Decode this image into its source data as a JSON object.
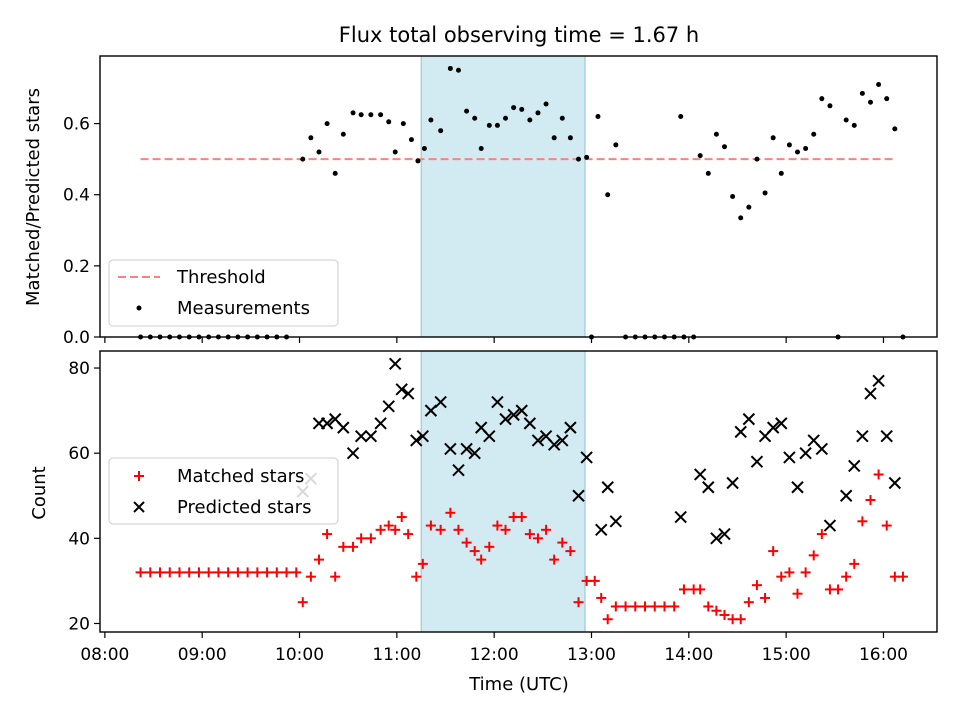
{
  "chart_data": [
    {
      "type": "scatter",
      "title": "Flux total observing time = 1.67 h",
      "ylabel": "Matched/Predicted stars",
      "xlabel": "",
      "xlim": [
        "07:57",
        "16:33"
      ],
      "ylim": [
        0.0,
        0.79
      ],
      "yticks": [
        "0.0",
        "0.2",
        "0.4",
        "0.6"
      ],
      "grid": false,
      "legend_position": "lower-left",
      "shaded_interval": {
        "start": "11:15",
        "end": "12:56",
        "color": "#add8e6"
      },
      "threshold": {
        "name": "Threshold",
        "value": 0.5,
        "x_start": "08:22",
        "x_end": "16:06",
        "color": "#ff8080",
        "style": "dashed"
      },
      "series": [
        {
          "name": "Measurements",
          "color": "#000000",
          "marker": "dot",
          "points": [
            [
              "08:22",
              0
            ],
            [
              "08:28",
              0
            ],
            [
              "08:34",
              0
            ],
            [
              "08:40",
              0
            ],
            [
              "08:46",
              0
            ],
            [
              "08:52",
              0
            ],
            [
              "08:58",
              0
            ],
            [
              "09:04",
              0
            ],
            [
              "09:10",
              0
            ],
            [
              "09:16",
              0
            ],
            [
              "09:22",
              0
            ],
            [
              "09:28",
              0
            ],
            [
              "09:34",
              0
            ],
            [
              "09:40",
              0
            ],
            [
              "09:46",
              0
            ],
            [
              "09:52",
              0
            ],
            [
              "10:02",
              0.5
            ],
            [
              "10:07",
              0.56
            ],
            [
              "10:12",
              0.52
            ],
            [
              "10:17",
              0.6
            ],
            [
              "10:22",
              0.46
            ],
            [
              "10:27",
              0.57
            ],
            [
              "10:33",
              0.63
            ],
            [
              "10:38",
              0.625
            ],
            [
              "10:44",
              0.625
            ],
            [
              "10:50",
              0.625
            ],
            [
              "10:55",
              0.605
            ],
            [
              "10:59",
              0.52
            ],
            [
              "11:04",
              0.6
            ],
            [
              "11:09",
              0.555
            ],
            [
              "11:13",
              0.495
            ],
            [
              "11:17",
              0.53
            ],
            [
              "11:21",
              0.61
            ],
            [
              "11:27",
              0.58
            ],
            [
              "11:33",
              0.755
            ],
            [
              "11:38",
              0.75
            ],
            [
              "11:43",
              0.635
            ],
            [
              "11:48",
              0.615
            ],
            [
              "11:52",
              0.53
            ],
            [
              "11:57",
              0.595
            ],
            [
              "12:02",
              0.595
            ],
            [
              "12:07",
              0.615
            ],
            [
              "12:12",
              0.645
            ],
            [
              "12:17",
              0.64
            ],
            [
              "12:22",
              0.61
            ],
            [
              "12:27",
              0.63
            ],
            [
              "12:32",
              0.655
            ],
            [
              "12:37",
              0.56
            ],
            [
              "12:42",
              0.615
            ],
            [
              "12:47",
              0.56
            ],
            [
              "12:52",
              0.5
            ],
            [
              "12:57",
              0.505
            ],
            [
              "13:00",
              0
            ],
            [
              "13:04",
              0.62
            ],
            [
              "13:10",
              0.4
            ],
            [
              "13:15",
              0.54
            ],
            [
              "13:21",
              0
            ],
            [
              "13:27",
              0
            ],
            [
              "13:33",
              0
            ],
            [
              "13:39",
              0
            ],
            [
              "13:45",
              0
            ],
            [
              "13:51",
              0
            ],
            [
              "13:57",
              0
            ],
            [
              "13:55",
              0.62
            ],
            [
              "14:03",
              0
            ],
            [
              "14:07",
              0.51
            ],
            [
              "14:12",
              0.46
            ],
            [
              "14:17",
              0.57
            ],
            [
              "14:22",
              0.535
            ],
            [
              "14:27",
              0.395
            ],
            [
              "14:32",
              0.335
            ],
            [
              "14:37",
              0.365
            ],
            [
              "14:42",
              0.5
            ],
            [
              "14:47",
              0.405
            ],
            [
              "14:52",
              0.56
            ],
            [
              "14:57",
              0.46
            ],
            [
              "15:02",
              0.54
            ],
            [
              "15:07",
              0.52
            ],
            [
              "15:12",
              0.53
            ],
            [
              "15:17",
              0.57
            ],
            [
              "15:22",
              0.67
            ],
            [
              "15:27",
              0.65
            ],
            [
              "15:32",
              0
            ],
            [
              "15:37",
              0.61
            ],
            [
              "15:42",
              0.595
            ],
            [
              "15:47",
              0.685
            ],
            [
              "15:52",
              0.66
            ],
            [
              "15:57",
              0.71
            ],
            [
              "16:02",
              0.67
            ],
            [
              "16:07",
              0.585
            ],
            [
              "16:12",
              0
            ]
          ]
        }
      ],
      "legend": [
        "Threshold",
        "Measurements"
      ]
    },
    {
      "type": "scatter",
      "title": "",
      "ylabel": "Count",
      "xlabel": "Time (UTC)",
      "xlim": [
        "07:57",
        "16:33"
      ],
      "ylim": [
        18,
        84
      ],
      "yticks": [
        "20",
        "40",
        "60",
        "80"
      ],
      "xticks": [
        "08:00",
        "09:00",
        "10:00",
        "11:00",
        "12:00",
        "13:00",
        "14:00",
        "15:00",
        "16:00"
      ],
      "grid": false,
      "legend_position": "center-left",
      "shaded_interval": {
        "start": "11:15",
        "end": "12:56",
        "color": "#add8e6"
      },
      "series": [
        {
          "name": "Matched stars",
          "color": "#ff0000",
          "marker": "plus",
          "points": [
            [
              "08:22",
              32
            ],
            [
              "08:28",
              32
            ],
            [
              "08:34",
              32
            ],
            [
              "08:40",
              32
            ],
            [
              "08:46",
              32
            ],
            [
              "08:52",
              32
            ],
            [
              "08:58",
              32
            ],
            [
              "09:04",
              32
            ],
            [
              "09:10",
              32
            ],
            [
              "09:16",
              32
            ],
            [
              "09:22",
              32
            ],
            [
              "09:28",
              32
            ],
            [
              "09:34",
              32
            ],
            [
              "09:40",
              32
            ],
            [
              "09:46",
              32
            ],
            [
              "09:52",
              32
            ],
            [
              "09:58",
              32
            ],
            [
              "10:02",
              25
            ],
            [
              "10:07",
              31
            ],
            [
              "10:12",
              35
            ],
            [
              "10:17",
              41
            ],
            [
              "10:22",
              31
            ],
            [
              "10:27",
              38
            ],
            [
              "10:33",
              38
            ],
            [
              "10:38",
              40
            ],
            [
              "10:44",
              40
            ],
            [
              "10:50",
              42
            ],
            [
              "10:55",
              43
            ],
            [
              "10:59",
              42
            ],
            [
              "11:03",
              45
            ],
            [
              "11:07",
              41
            ],
            [
              "11:12",
              31
            ],
            [
              "11:16",
              34
            ],
            [
              "11:21",
              43
            ],
            [
              "11:27",
              42
            ],
            [
              "11:33",
              46
            ],
            [
              "11:38",
              42
            ],
            [
              "11:43",
              39
            ],
            [
              "11:48",
              37
            ],
            [
              "11:52",
              35
            ],
            [
              "11:57",
              38
            ],
            [
              "12:02",
              43
            ],
            [
              "12:07",
              42
            ],
            [
              "12:12",
              45
            ],
            [
              "12:17",
              45
            ],
            [
              "12:22",
              41
            ],
            [
              "12:27",
              40
            ],
            [
              "12:32",
              42
            ],
            [
              "12:37",
              35
            ],
            [
              "12:42",
              39
            ],
            [
              "12:47",
              37
            ],
            [
              "12:52",
              25
            ],
            [
              "12:57",
              30
            ],
            [
              "13:02",
              30
            ],
            [
              "13:06",
              26
            ],
            [
              "13:10",
              21
            ],
            [
              "13:15",
              24
            ],
            [
              "13:21",
              24
            ],
            [
              "13:27",
              24
            ],
            [
              "13:33",
              24
            ],
            [
              "13:39",
              24
            ],
            [
              "13:45",
              24
            ],
            [
              "13:51",
              24
            ],
            [
              "13:57",
              28
            ],
            [
              "14:03",
              28
            ],
            [
              "14:07",
              28
            ],
            [
              "14:12",
              24
            ],
            [
              "14:17",
              23
            ],
            [
              "14:22",
              22
            ],
            [
              "14:27",
              21
            ],
            [
              "14:32",
              21
            ],
            [
              "14:37",
              25
            ],
            [
              "14:42",
              29
            ],
            [
              "14:47",
              26
            ],
            [
              "14:52",
              37
            ],
            [
              "14:57",
              31
            ],
            [
              "15:02",
              32
            ],
            [
              "15:07",
              27
            ],
            [
              "15:12",
              32
            ],
            [
              "15:17",
              36
            ],
            [
              "15:22",
              41
            ],
            [
              "15:27",
              28
            ],
            [
              "15:32",
              28
            ],
            [
              "15:37",
              31
            ],
            [
              "15:42",
              34
            ],
            [
              "15:47",
              44
            ],
            [
              "15:52",
              49
            ],
            [
              "15:57",
              55
            ],
            [
              "16:02",
              43
            ],
            [
              "16:07",
              31
            ],
            [
              "16:12",
              31
            ]
          ]
        },
        {
          "name": "Predicted stars",
          "color": "#000000",
          "marker": "x",
          "points": [
            [
              "10:02",
              51
            ],
            [
              "10:07",
              54
            ],
            [
              "10:12",
              67
            ],
            [
              "10:17",
              67
            ],
            [
              "10:22",
              68
            ],
            [
              "10:27",
              66
            ],
            [
              "10:33",
              60
            ],
            [
              "10:38",
              64
            ],
            [
              "10:44",
              64
            ],
            [
              "10:50",
              67
            ],
            [
              "10:55",
              71
            ],
            [
              "10:59",
              81
            ],
            [
              "11:03",
              75
            ],
            [
              "11:07",
              74
            ],
            [
              "11:12",
              63
            ],
            [
              "11:16",
              64
            ],
            [
              "11:21",
              70
            ],
            [
              "11:27",
              72
            ],
            [
              "11:33",
              61
            ],
            [
              "11:38",
              56
            ],
            [
              "11:43",
              61
            ],
            [
              "11:48",
              60
            ],
            [
              "11:52",
              66
            ],
            [
              "11:57",
              64
            ],
            [
              "12:02",
              72
            ],
            [
              "12:07",
              68
            ],
            [
              "12:12",
              69
            ],
            [
              "12:17",
              70
            ],
            [
              "12:22",
              67
            ],
            [
              "12:27",
              63
            ],
            [
              "12:32",
              64
            ],
            [
              "12:37",
              62
            ],
            [
              "12:42",
              63
            ],
            [
              "12:47",
              66
            ],
            [
              "12:52",
              50
            ],
            [
              "12:57",
              59
            ],
            [
              "13:06",
              42
            ],
            [
              "13:10",
              52
            ],
            [
              "13:15",
              44
            ],
            [
              "13:55",
              45
            ],
            [
              "14:07",
              55
            ],
            [
              "14:12",
              52
            ],
            [
              "14:17",
              40
            ],
            [
              "14:22",
              41
            ],
            [
              "14:27",
              53
            ],
            [
              "14:32",
              65
            ],
            [
              "14:37",
              68
            ],
            [
              "14:42",
              58
            ],
            [
              "14:47",
              64
            ],
            [
              "14:52",
              66
            ],
            [
              "14:57",
              67
            ],
            [
              "15:02",
              59
            ],
            [
              "15:07",
              52
            ],
            [
              "15:12",
              60
            ],
            [
              "15:17",
              63
            ],
            [
              "15:22",
              61
            ],
            [
              "15:27",
              43
            ],
            [
              "15:37",
              50
            ],
            [
              "15:42",
              57
            ],
            [
              "15:47",
              64
            ],
            [
              "15:52",
              74
            ],
            [
              "15:57",
              77
            ],
            [
              "16:02",
              64
            ],
            [
              "16:07",
              53
            ]
          ]
        }
      ],
      "legend": [
        "Matched stars",
        "Predicted stars"
      ]
    }
  ]
}
